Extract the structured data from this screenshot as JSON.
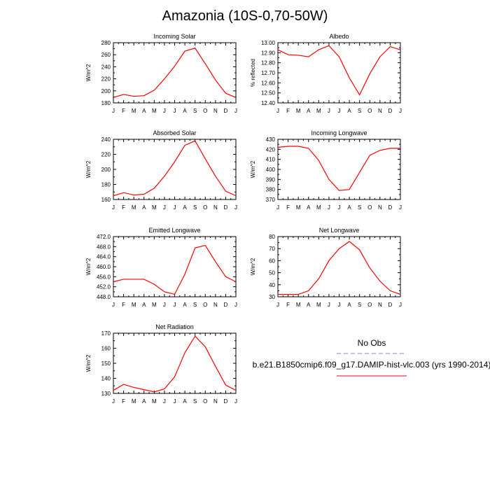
{
  "figure": {
    "title": "Amazonia (10S-0,70-50W)"
  },
  "legend": {
    "obs_label": "No Obs",
    "model_label": "b.e21.B1850cmip6.f09_g17.DAMIP-hist-vlc.003 (yrs 1990-2014)",
    "obs_color": "#7f7fff",
    "model_color": "#ff0000"
  },
  "chart_data": [
    {
      "type": "line",
      "title": "Incoming Solar",
      "ylabel": "W/m^2",
      "xlabel": "",
      "x": [
        "J",
        "F",
        "M",
        "A",
        "M",
        "J",
        "J",
        "A",
        "S",
        "O",
        "N",
        "D",
        "J"
      ],
      "ylim": [
        180,
        280
      ],
      "yticks": [
        180,
        200,
        220,
        240,
        260,
        280
      ],
      "ytick_labels": [
        "180",
        "200",
        "220",
        "240",
        "260",
        "280"
      ],
      "series": [
        {
          "values": [
            189,
            194,
            191,
            192,
            201,
            220,
            241,
            266,
            271,
            245,
            218,
            196,
            189
          ],
          "color": "#ff0000"
        }
      ]
    },
    {
      "type": "line",
      "title": "Albedo",
      "ylabel": "% reflected",
      "xlabel": "",
      "x": [
        "J",
        "F",
        "M",
        "A",
        "M",
        "J",
        "J",
        "A",
        "S",
        "O",
        "N",
        "D",
        "J"
      ],
      "ylim": [
        12.4,
        13.0
      ],
      "yticks": [
        12.4,
        12.5,
        12.6,
        12.7,
        12.8,
        12.9,
        13.0
      ],
      "ytick_labels": [
        "12.40",
        "12.50",
        "12.60",
        "12.70",
        "12.80",
        "12.90",
        "13.00"
      ],
      "series": [
        {
          "values": [
            12.93,
            12.88,
            12.875,
            12.86,
            12.93,
            12.97,
            12.86,
            12.65,
            12.48,
            12.69,
            12.86,
            12.96,
            12.93
          ],
          "color": "#ff0000"
        }
      ]
    },
    {
      "type": "line",
      "title": "Absorbed Solar",
      "ylabel": "W/m^2",
      "xlabel": "",
      "x": [
        "J",
        "F",
        "M",
        "A",
        "M",
        "J",
        "J",
        "A",
        "S",
        "O",
        "N",
        "D",
        "J"
      ],
      "ylim": [
        160,
        240
      ],
      "yticks": [
        160,
        180,
        200,
        220,
        240
      ],
      "ytick_labels": [
        "160",
        "180",
        "200",
        "220",
        "240"
      ],
      "series": [
        {
          "values": [
            165,
            169,
            166,
            167,
            175,
            191,
            210,
            232,
            238,
            214,
            191,
            171,
            165
          ],
          "color": "#ff0000"
        }
      ]
    },
    {
      "type": "line",
      "title": "Incoming Longwave",
      "ylabel": "W/m^2",
      "xlabel": "",
      "x": [
        "J",
        "F",
        "M",
        "A",
        "M",
        "J",
        "J",
        "A",
        "S",
        "O",
        "N",
        "D",
        "J"
      ],
      "ylim": [
        370,
        430
      ],
      "yticks": [
        370,
        380,
        390,
        400,
        410,
        420,
        430
      ],
      "ytick_labels": [
        "370",
        "380",
        "390",
        "400",
        "410",
        "420",
        "430"
      ],
      "series": [
        {
          "values": [
            422,
            423,
            423,
            421,
            409,
            390,
            379,
            380,
            397,
            414,
            419,
            421,
            421
          ],
          "color": "#ff0000"
        }
      ]
    },
    {
      "type": "line",
      "title": "Emitted Longwave",
      "ylabel": "W/m^2",
      "xlabel": "",
      "x": [
        "J",
        "F",
        "M",
        "A",
        "M",
        "J",
        "J",
        "A",
        "S",
        "O",
        "N",
        "D",
        "J"
      ],
      "ylim": [
        448,
        472
      ],
      "yticks": [
        448,
        452,
        456,
        460,
        464,
        468,
        472
      ],
      "ytick_labels": [
        "448.0",
        "452.0",
        "456.0",
        "460.0",
        "464.0",
        "468.0",
        "472.0"
      ],
      "series": [
        {
          "values": [
            454,
            455,
            455,
            455,
            453,
            450,
            449,
            457,
            467.5,
            468.5,
            462,
            456,
            454
          ],
          "color": "#ff0000"
        }
      ]
    },
    {
      "type": "line",
      "title": "Net Longwave",
      "ylabel": "W/m^2",
      "xlabel": "",
      "x": [
        "J",
        "F",
        "M",
        "A",
        "M",
        "J",
        "J",
        "A",
        "S",
        "O",
        "N",
        "D",
        "J"
      ],
      "ylim": [
        30,
        80
      ],
      "yticks": [
        30,
        40,
        50,
        60,
        70,
        80
      ],
      "ytick_labels": [
        "30",
        "40",
        "50",
        "60",
        "70",
        "80"
      ],
      "series": [
        {
          "values": [
            32,
            32,
            32,
            35,
            45,
            60,
            70,
            76,
            69,
            54,
            43,
            35,
            32
          ],
          "color": "#ff0000"
        }
      ]
    },
    {
      "type": "line",
      "title": "Net Radiation",
      "ylabel": "W/m^2",
      "xlabel": "",
      "x": [
        "J",
        "F",
        "M",
        "A",
        "M",
        "J",
        "J",
        "A",
        "S",
        "O",
        "N",
        "D",
        "J"
      ],
      "ylim": [
        130,
        170
      ],
      "yticks": [
        130,
        140,
        150,
        160,
        170
      ],
      "ytick_labels": [
        "130",
        "140",
        "150",
        "160",
        "170"
      ],
      "series": [
        {
          "values": [
            132,
            136,
            134,
            132.5,
            131,
            133,
            141,
            157,
            168,
            161,
            148,
            135.5,
            132
          ],
          "color": "#ff0000"
        }
      ]
    }
  ]
}
